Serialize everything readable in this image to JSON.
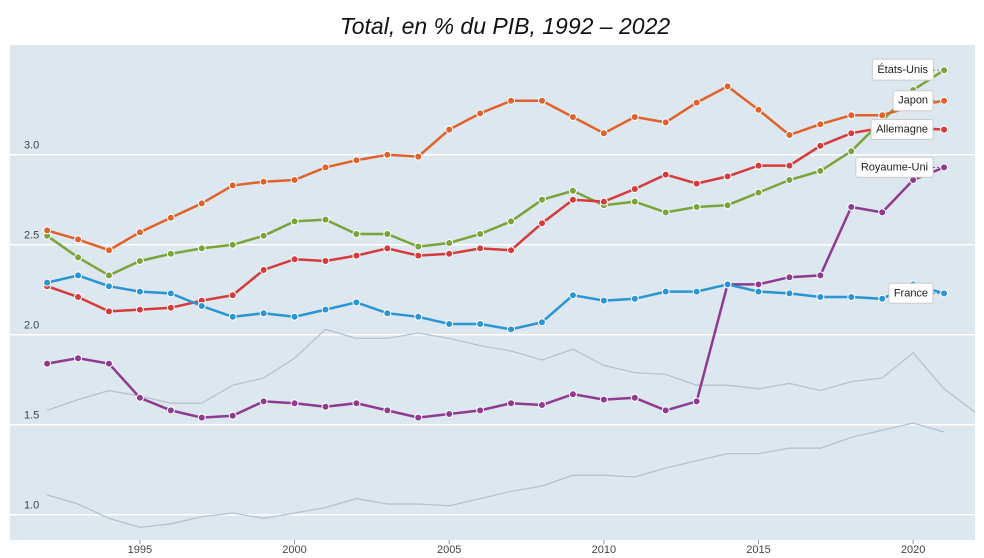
{
  "chart_data": {
    "type": "line",
    "title": "Total, en % du PIB, 1992 – 2022",
    "x": [
      1992,
      1993,
      1994,
      1995,
      1996,
      1997,
      1998,
      1999,
      2000,
      2001,
      2002,
      2003,
      2004,
      2005,
      2006,
      2007,
      2008,
      2009,
      2010,
      2011,
      2012,
      2013,
      2014,
      2015,
      2016,
      2017,
      2018,
      2019,
      2020,
      2021,
      2022
    ],
    "xlim": [
      1990.8,
      2022
    ],
    "xticks": [
      1995,
      2000,
      2005,
      2010,
      2015,
      2020
    ],
    "ylim": [
      0.86,
      3.61
    ],
    "yticks": [
      {
        "value": 1,
        "label": "1.0"
      },
      {
        "value": 1.5,
        "label": "1.5"
      },
      {
        "value": 2,
        "label": "2.0"
      },
      {
        "value": 2.5,
        "label": "2.5"
      },
      {
        "value": 3,
        "label": "3.0"
      }
    ],
    "grid": true,
    "series": [
      {
        "color": "#b8c2cc",
        "values": [
          1.58,
          1.64,
          1.69,
          1.66,
          1.62,
          1.62,
          1.72,
          1.76,
          1.87,
          2.03,
          1.98,
          1.98,
          2.01,
          1.98,
          1.94,
          1.91,
          1.86,
          1.92,
          1.83,
          1.79,
          1.78,
          1.72,
          1.72,
          1.7,
          1.73,
          1.69,
          1.74,
          1.76,
          1.9,
          1.7,
          1.57
        ]
      },
      {
        "color": "#b8c2cc",
        "values": [
          1.11,
          1.06,
          0.98,
          0.93,
          0.95,
          0.99,
          1.01,
          0.98,
          1.01,
          1.04,
          1.09,
          1.06,
          1.06,
          1.05,
          1.09,
          1.13,
          1.16,
          1.22,
          1.22,
          1.21,
          1.26,
          1.3,
          1.34,
          1.34,
          1.37,
          1.37,
          1.43,
          1.47,
          1.51,
          1.46,
          null
        ]
      },
      {
        "name": "États-Unis",
        "color": "#7aa33a",
        "values": [
          2.55,
          2.43,
          2.33,
          2.41,
          2.45,
          2.48,
          2.5,
          2.55,
          2.63,
          2.64,
          2.56,
          2.56,
          2.49,
          2.51,
          2.56,
          2.63,
          2.75,
          2.8,
          2.72,
          2.74,
          2.68,
          2.71,
          2.72,
          2.79,
          2.86,
          2.91,
          3.02,
          3.19,
          3.36,
          3.47,
          null
        ]
      },
      {
        "name": "Japon",
        "color": "#e0622a",
        "values": [
          2.58,
          2.53,
          2.47,
          2.57,
          2.65,
          2.73,
          2.83,
          2.85,
          2.86,
          2.93,
          2.97,
          3.0,
          2.99,
          3.14,
          3.23,
          3.3,
          3.3,
          3.21,
          3.12,
          3.21,
          3.18,
          3.29,
          3.38,
          3.25,
          3.11,
          3.17,
          3.22,
          3.22,
          3.27,
          3.3,
          null
        ]
      },
      {
        "name": "Allemagne",
        "color": "#d63a3a",
        "values": [
          2.27,
          2.21,
          2.13,
          2.14,
          2.15,
          2.19,
          2.22,
          2.36,
          2.42,
          2.41,
          2.44,
          2.48,
          2.44,
          2.45,
          2.48,
          2.47,
          2.62,
          2.75,
          2.74,
          2.81,
          2.89,
          2.84,
          2.88,
          2.94,
          2.94,
          3.05,
          3.12,
          3.15,
          3.15,
          3.14,
          null
        ]
      },
      {
        "name": "Royaume-Uni",
        "color": "#8e3a8e",
        "values": [
          1.84,
          1.87,
          1.84,
          1.65,
          1.58,
          1.54,
          1.55,
          1.63,
          1.62,
          1.6,
          1.62,
          1.58,
          1.54,
          1.56,
          1.58,
          1.62,
          1.61,
          1.67,
          1.64,
          1.65,
          1.58,
          1.63,
          2.28,
          2.28,
          2.32,
          2.33,
          2.71,
          2.68,
          2.86,
          2.93,
          null
        ]
      },
      {
        "name": "France",
        "color": "#2a95d4",
        "values": [
          2.29,
          2.33,
          2.27,
          2.24,
          2.23,
          2.16,
          2.1,
          2.12,
          2.1,
          2.14,
          2.18,
          2.12,
          2.1,
          2.06,
          2.06,
          2.03,
          2.07,
          2.22,
          2.19,
          2.2,
          2.24,
          2.24,
          2.28,
          2.24,
          2.23,
          2.21,
          2.21,
          2.2,
          2.28,
          2.23,
          null
        ]
      }
    ]
  }
}
